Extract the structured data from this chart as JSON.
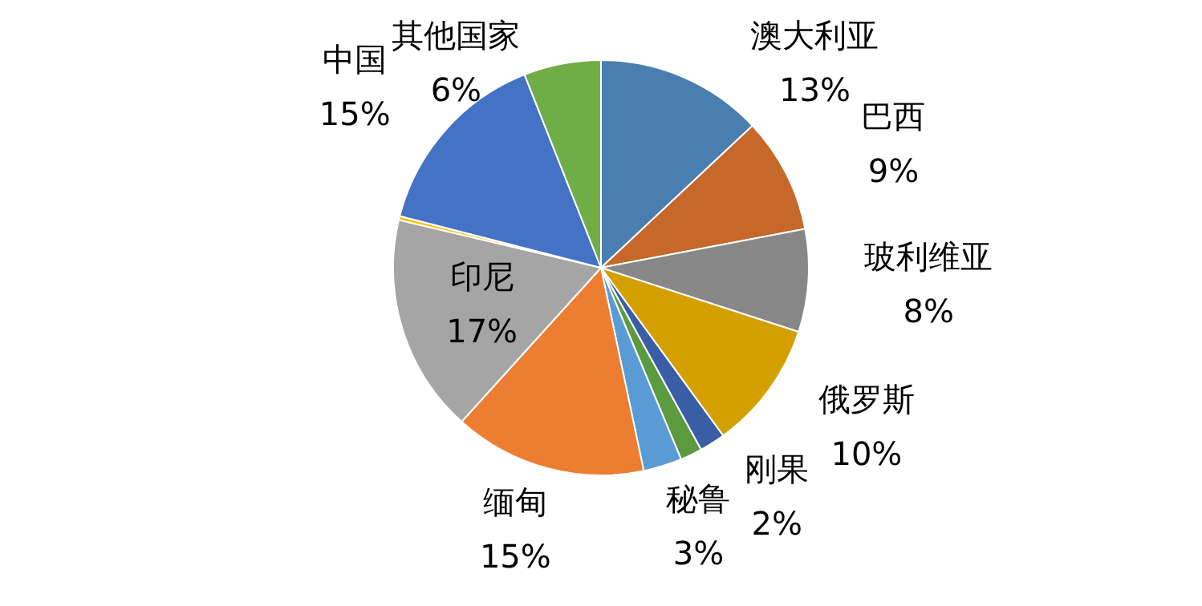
{
  "chart_data": {
    "type": "pie",
    "categories": [
      "澳大利亚",
      "巴西",
      "玻利维亚",
      "俄罗斯",
      "刚果",
      null,
      "秘鲁",
      "缅甸",
      "印尼",
      null,
      "中国",
      "其他国家"
    ],
    "values": [
      13,
      9,
      8,
      10,
      2,
      1.7,
      3,
      15,
      17,
      0.3,
      15,
      6
    ],
    "value_labels": [
      "13%",
      "9%",
      "8%",
      "10%",
      "2%",
      null,
      "3%",
      "15%",
      "17%",
      null,
      "15%",
      "6%"
    ],
    "colors": [
      "#4a7eb0",
      "#c5682a",
      "#878787",
      "#d4a000",
      "#3a5ea6",
      "#5b9a3e",
      "#5b9bd5",
      "#ed7d31",
      "#a5a5a5",
      "#ffc000",
      "#4472c4",
      "#70ad47"
    ],
    "legend": false
  }
}
